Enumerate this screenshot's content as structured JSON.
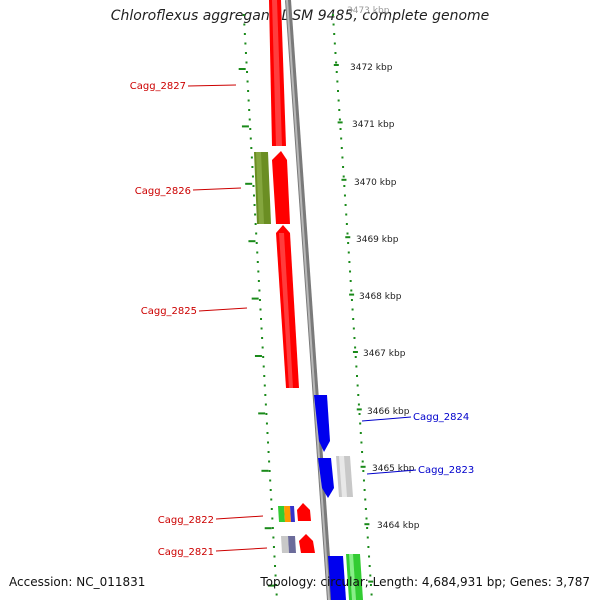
{
  "title": "Chloroflexus aggregans DSM 9485, complete genome",
  "accession_text": "Accession: NC_011831",
  "topology_text": "Topology: circular; Length: 4,684,931 bp; Genes: 3,787",
  "colors": {
    "gene_red": "#ff0000",
    "gene_blue": "#0000ee",
    "gene_olive": "#6b8e23",
    "gene_grey": "#c8c8c8",
    "gene_green": "#33cc33",
    "gene_orange": "#ff9900",
    "backbone": "#888888",
    "tick_green": "#1a8a1a",
    "label_red": "#cc0000",
    "label_blue": "#0000cc"
  },
  "scale_labels": [
    "3473 kbp",
    "3472 kbp",
    "3471 kbp",
    "3470 kbp",
    "3469 kbp",
    "3468 kbp",
    "3467 kbp",
    "3466 kbp",
    "3465 kbp",
    "3464 kbp"
  ],
  "gene_labels": [
    {
      "name": "Cagg_2827",
      "strand": "minus"
    },
    {
      "name": "Cagg_2826",
      "strand": "minus"
    },
    {
      "name": "Cagg_2825",
      "strand": "minus"
    },
    {
      "name": "Cagg_2824",
      "strand": "plus"
    },
    {
      "name": "Cagg_2823",
      "strand": "plus"
    },
    {
      "name": "Cagg_2822",
      "strand": "minus"
    },
    {
      "name": "Cagg_2821",
      "strand": "minus"
    }
  ]
}
